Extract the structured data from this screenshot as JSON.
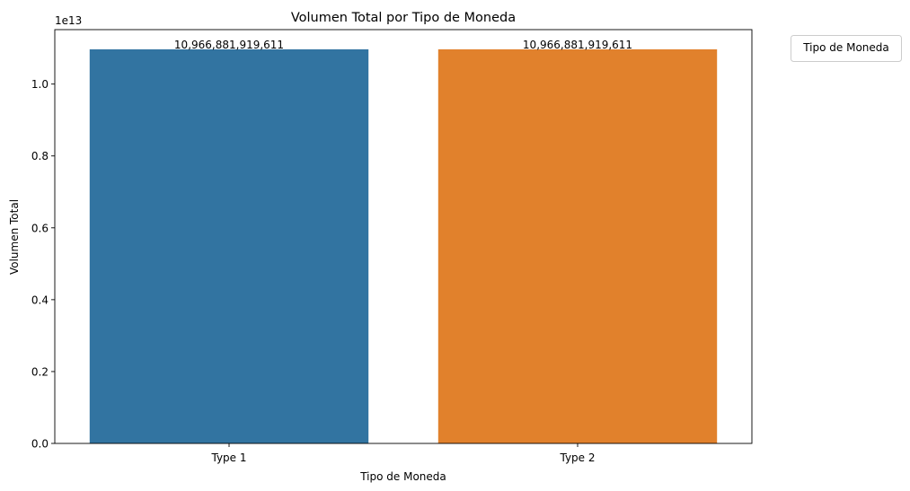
{
  "chart_data": {
    "type": "bar",
    "title": "Volumen Total por Tipo de Moneda",
    "xlabel": "Tipo de Moneda",
    "ylabel": "Volumen Total",
    "offset_label": "1e13",
    "categories": [
      "Type 1",
      "Type 2"
    ],
    "values": [
      10966881919611,
      10966881919611
    ],
    "value_labels": [
      "10,966,881,919,611",
      "10,966,881,919,611"
    ],
    "colors": [
      "#3274a1",
      "#e1812c"
    ],
    "ylim": [
      0,
      11515226015592
    ],
    "yticks": [
      0,
      2000000000000,
      4000000000000,
      6000000000000,
      8000000000000,
      10000000000000
    ],
    "ytick_labels": [
      "0.0",
      "0.2",
      "0.4",
      "0.6",
      "0.8",
      "1.0"
    ],
    "grid": false,
    "legend": {
      "title": "Tipo de Moneda",
      "placement": "outside-top-right"
    }
  }
}
